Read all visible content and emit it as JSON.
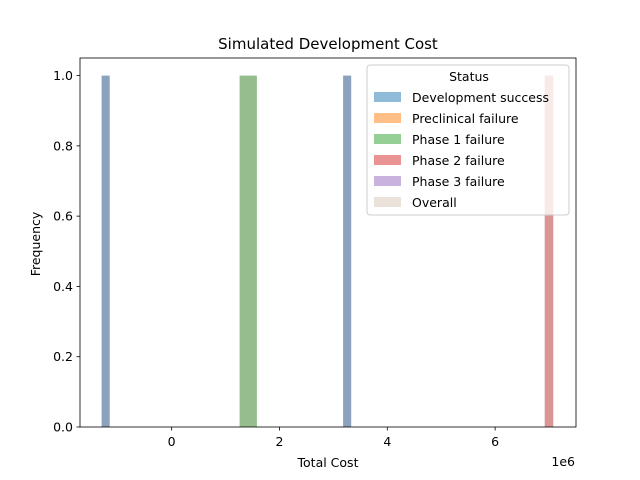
{
  "chart_data": {
    "type": "bar",
    "title": "Simulated Development Cost",
    "xlabel": "Total Cost",
    "ylabel": "Frequency",
    "x_offset_label": "1e6",
    "x_scale": 1000000,
    "xlim": [
      -1700000,
      7500000
    ],
    "ylim": [
      0,
      1.05
    ],
    "grid": false,
    "xticks": [
      0,
      2000000,
      4000000,
      6000000
    ],
    "xtick_labels": [
      "0",
      "2",
      "4",
      "6"
    ],
    "yticks": [
      0.0,
      0.2,
      0.4,
      0.6,
      0.8,
      1.0
    ],
    "ytick_labels": [
      "0.0",
      "0.2",
      "0.4",
      "0.6",
      "0.8",
      "1.0"
    ],
    "legend": {
      "title": "Status",
      "placement": "top-right",
      "entries": [
        {
          "label": "Development success",
          "color": "#1f77b4"
        },
        {
          "label": "Preclinical failure",
          "color": "#ff7f0e"
        },
        {
          "label": "Phase 1 failure",
          "color": "#2ca02c"
        },
        {
          "label": "Phase 2 failure",
          "color": "#d62728"
        },
        {
          "label": "Phase 3 failure",
          "color": "#9467bd"
        },
        {
          "label": "Overall",
          "color": "#d8c7b6"
        }
      ]
    },
    "series": [
      {
        "name": "Development success",
        "color": "#4f6f96",
        "bars": [
          {
            "x0": -1300000,
            "x1": -1150000,
            "value": 1.0
          },
          {
            "x0": 3180000,
            "x1": 3330000,
            "value": 1.0
          }
        ]
      },
      {
        "name": "Phase 1 failure",
        "color": "#5d9a50",
        "bars": [
          {
            "x0": 1260000,
            "x1": 1580000,
            "value": 1.0
          }
        ]
      },
      {
        "name": "Phase 2 failure",
        "color": "#c85c58",
        "bars": [
          {
            "x0": 6920000,
            "x1": 7080000,
            "value": 1.0
          }
        ]
      }
    ]
  }
}
